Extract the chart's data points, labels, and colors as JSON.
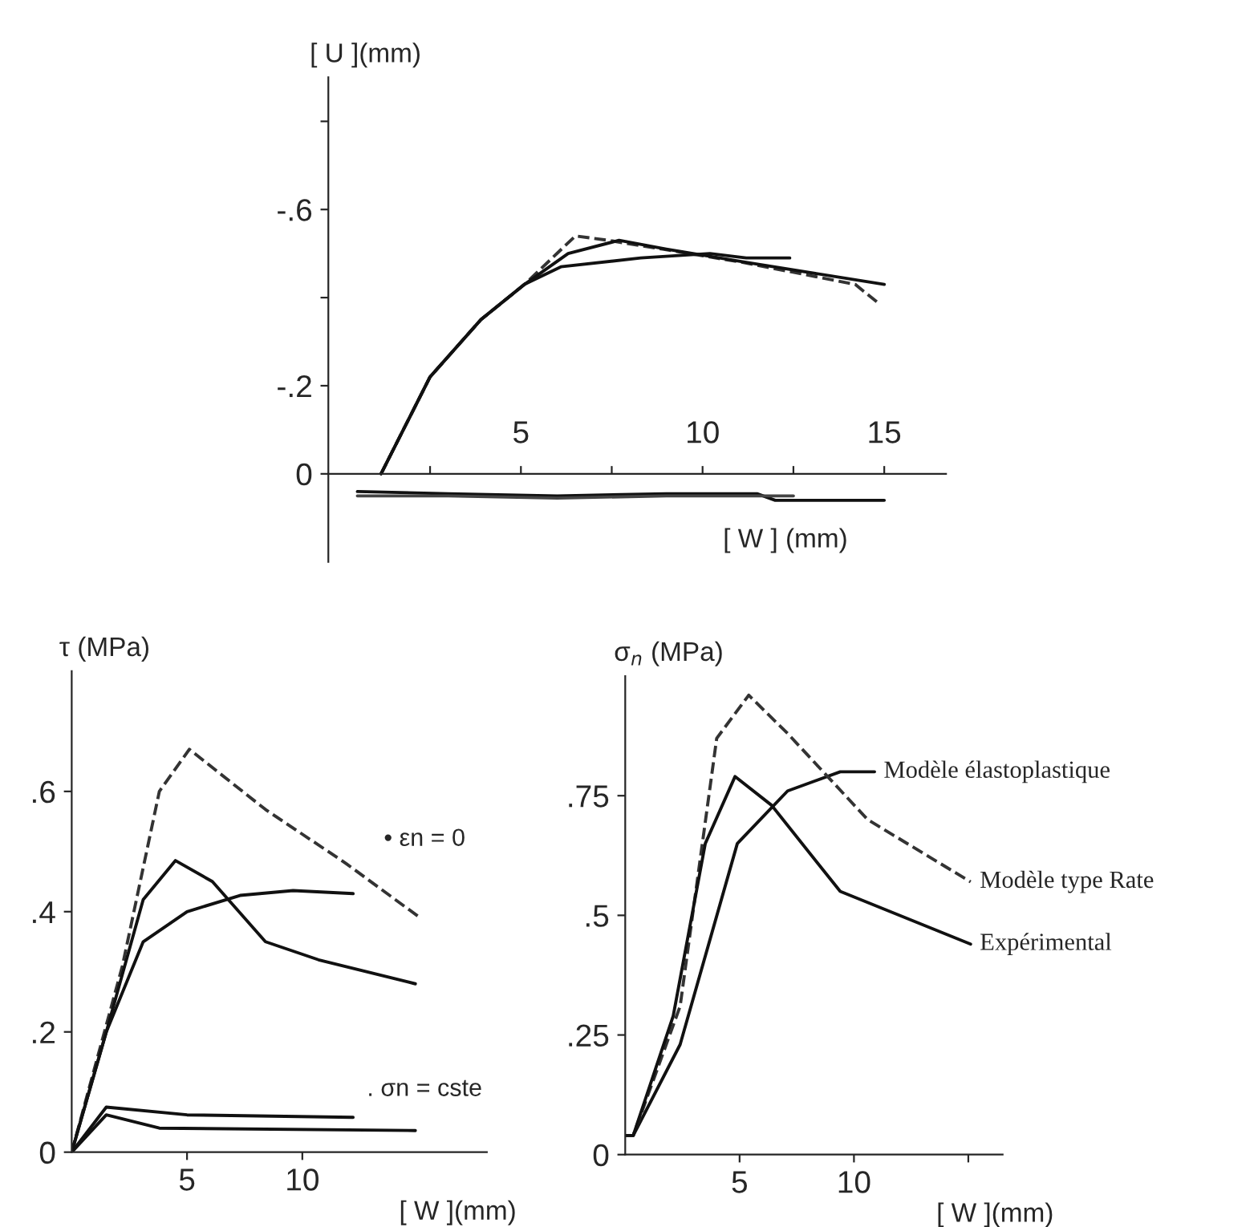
{
  "chart_data": [
    {
      "type": "line",
      "ylabel": "[ U ](mm)",
      "xlabel": "[ W ] (mm)",
      "xlim": [
        -0.3,
        16.7
      ],
      "ylim": [
        0.2,
        -0.9
      ],
      "xticks": [
        {
          "value": 2.5,
          "label": null
        },
        5,
        {
          "value": 7.5,
          "label": null
        },
        10,
        {
          "value": 12.5,
          "label": null
        },
        15
      ],
      "yticks": [
        0,
        {
          "value": -0.2,
          "label": "-.2"
        },
        {
          "value": -0.4,
          "label": null
        },
        {
          "value": -0.6,
          "label": "-.6"
        },
        {
          "value": -0.8,
          "label": null
        }
      ],
      "grid": false,
      "legend": false,
      "series": [
        {
          "color": "#333333",
          "line_style": "dashed",
          "x": [
            1.15,
            2.5,
            3.9,
            5.1,
            6.5,
            7.4,
            8.9,
            11.1,
            14.2,
            14.8
          ],
          "values": [
            0,
            -0.22,
            -0.35,
            -0.43,
            -0.54,
            -0.53,
            -0.51,
            -0.48,
            -0.43,
            -0.39
          ]
        },
        {
          "color": "#111111",
          "line_style": "solid",
          "x": [
            1.15,
            2.5,
            3.9,
            5.1,
            6.3,
            7.7,
            9.0,
            11.2,
            15
          ],
          "values": [
            0,
            -0.22,
            -0.35,
            -0.43,
            -0.5,
            -0.53,
            -0.51,
            -0.48,
            -0.43
          ]
        },
        {
          "color": "#111111",
          "line_style": "solid",
          "x": [
            1.15,
            2.5,
            3.9,
            5.1,
            6.1,
            8.3,
            10.2,
            11.2,
            12.4
          ],
          "values": [
            0,
            -0.22,
            -0.35,
            -0.43,
            -0.47,
            -0.49,
            -0.5,
            -0.49,
            -0.49
          ]
        },
        {
          "color": "#111111",
          "line_style": "solid",
          "x": [
            0.5,
            3,
            6,
            9,
            11.5,
            12,
            15
          ],
          "values": [
            0.04,
            0.045,
            0.05,
            0.045,
            0.045,
            0.06,
            0.06
          ]
        },
        {
          "color": "#444444",
          "line_style": "solid",
          "x": [
            0.5,
            3,
            6,
            9,
            12.5
          ],
          "values": [
            0.05,
            0.05,
            0.055,
            0.05,
            0.05
          ]
        }
      ]
    },
    {
      "type": "line",
      "ylabel": "τ (MPa)",
      "xlabel": "[ W ](mm)",
      "xlim": [
        0,
        18
      ],
      "ylim": [
        0,
        0.8
      ],
      "xticks": [
        5,
        10
      ],
      "yticks": [
        0,
        {
          "value": 0.2,
          "label": ".2"
        },
        {
          "value": 0.4,
          "label": ".4"
        },
        {
          "value": 0.6,
          "label": ".6"
        }
      ],
      "grid": false,
      "legend": false,
      "annotations": [
        "• εn = 0",
        ". σn = cste"
      ],
      "series": [
        {
          "color": "#333333",
          "line_style": "dashed",
          "x": [
            0,
            2.2,
            3.8,
            5.1,
            8.4,
            11.9,
            15.1
          ],
          "values": [
            0,
            0.31,
            0.6,
            0.67,
            0.57,
            0.48,
            0.39
          ]
        },
        {
          "color": "#111111",
          "line_style": "solid",
          "x": [
            0,
            1.5,
            3.1,
            4.5,
            6.1,
            8.4,
            10.7,
            14.9
          ],
          "values": [
            0,
            0.2,
            0.42,
            0.485,
            0.45,
            0.35,
            0.32,
            0.28
          ]
        },
        {
          "color": "#111111",
          "line_style": "solid",
          "x": [
            0,
            1.5,
            3.1,
            5.0,
            7.3,
            9.6,
            12.2
          ],
          "values": [
            0,
            0.2,
            0.35,
            0.4,
            0.427,
            0.435,
            0.43
          ]
        },
        {
          "color": "#111111",
          "line_style": "solid",
          "x": [
            0,
            1.5,
            5,
            12.2
          ],
          "values": [
            0,
            0.075,
            0.062,
            0.058
          ]
        },
        {
          "color": "#111111",
          "line_style": "solid",
          "x": [
            0,
            1.5,
            3.8,
            14.9
          ],
          "values": [
            0,
            0.062,
            0.04,
            0.036
          ]
        }
      ]
    },
    {
      "type": "line",
      "ylabel": "σ$_{n}$ (MPa)",
      "xlabel": "[ W ](mm)",
      "xlim": [
        0,
        16.5
      ],
      "ylim": [
        0,
        1.0
      ],
      "xticks": [
        5,
        10,
        {
          "value": 15,
          "label": null
        }
      ],
      "yticks": [
        0,
        {
          "value": 0.25,
          "label": ".25"
        },
        {
          "value": 0.5,
          "label": ".5"
        },
        {
          "value": 0.75,
          "label": ".75"
        }
      ],
      "grid": false,
      "legend": false,
      "series": [
        {
          "name": "Modèle élastoplastique",
          "color": "#111111",
          "line_style": "solid",
          "x": [
            0,
            0.35,
            2.4,
            4.9,
            7.1,
            9.4,
            10.9
          ],
          "values": [
            0.04,
            0.04,
            0.23,
            0.65,
            0.76,
            0.8,
            0.8
          ]
        },
        {
          "name": "Modèle type Rate",
          "color": "#333333",
          "line_style": "dashed",
          "x": [
            0,
            0.35,
            2.4,
            4,
            5.4,
            7.1,
            10.6,
            15.1
          ],
          "values": [
            0.04,
            0.04,
            0.31,
            0.87,
            0.96,
            0.88,
            0.7,
            0.57
          ]
        },
        {
          "name": "Expérimental",
          "color": "#111111",
          "line_style": "solid",
          "x": [
            0,
            0.35,
            2.1,
            3.5,
            4.8,
            6.4,
            9.4,
            15.1
          ],
          "values": [
            0.04,
            0.04,
            0.29,
            0.65,
            0.79,
            0.73,
            0.55,
            0.44
          ]
        }
      ]
    }
  ]
}
